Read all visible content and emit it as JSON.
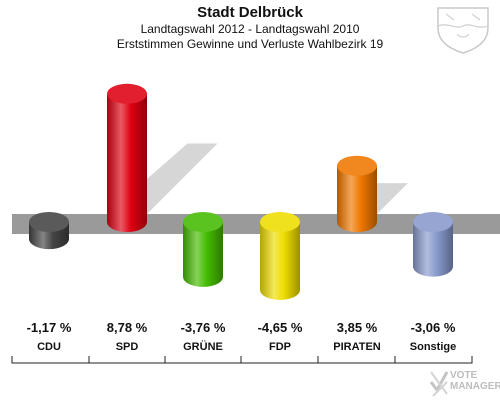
{
  "header": {
    "title": "Stadt Delbrück",
    "subtitle": "Landtagswahl 2012 - Landtagswahl 2010",
    "subtitle2": "Erststimmen Gewinne und Verluste Wahlbezirk 19"
  },
  "watermark": {
    "line1": "VOTE",
    "line2": "MANAGER"
  },
  "crest": {
    "icon": "state-crest-icon"
  },
  "chart_data": {
    "type": "bar",
    "title": "Stadt Delbrück",
    "subtitle": "Landtagswahl 2012 - Landtagswahl 2010 / Erststimmen Gewinne und Verluste Wahlbezirk 19",
    "categories": [
      "CDU",
      "SPD",
      "GRÜNE",
      "FDP",
      "PIRATEN",
      "Sonstige"
    ],
    "values": [
      -1.17,
      8.78,
      -3.76,
      -4.65,
      3.85,
      -3.06
    ],
    "value_labels": [
      "-1,17 %",
      "8,78 %",
      "-3,76 %",
      "-4,65 %",
      "3,85 %",
      "-3,06 %"
    ],
    "colors": [
      "#444444",
      "#dd0011",
      "#44bb00",
      "#eedd00",
      "#ee7700",
      "#8899cc"
    ],
    "xlabel": "",
    "ylabel": "",
    "unit": "%",
    "grid": false,
    "legend": "none"
  }
}
